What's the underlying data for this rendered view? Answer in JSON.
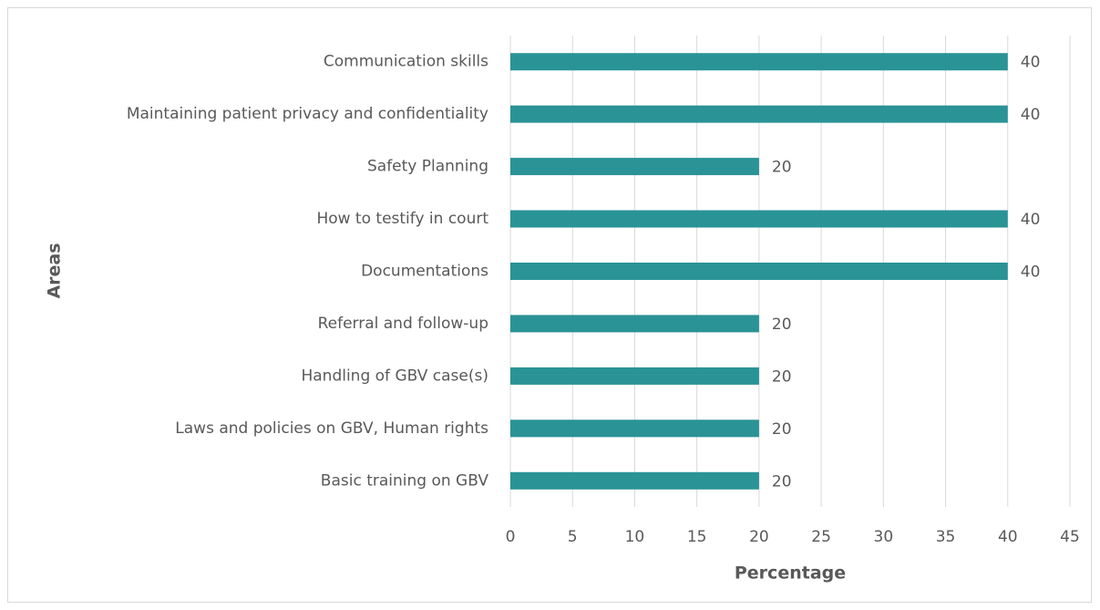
{
  "chart_data": {
    "type": "hbar",
    "categories": [
      "Communication skills",
      "Maintaining patient privacy and confidentiality",
      "Safety Planning",
      "How to testify in court",
      "Documentations",
      "Referral and follow-up",
      "Handling of GBV case(s)",
      "Laws and policies on GBV, Human rights",
      "Basic training on GBV"
    ],
    "values": [
      40,
      40,
      20,
      40,
      40,
      20,
      20,
      20,
      20
    ],
    "color": "#2a9396",
    "xlabel": "Percentage",
    "ylabel": "Areas",
    "xlim": [
      0,
      45
    ],
    "xticks": [
      0,
      5,
      10,
      15,
      20,
      25,
      30,
      35,
      40,
      45
    ],
    "grid": true
  }
}
